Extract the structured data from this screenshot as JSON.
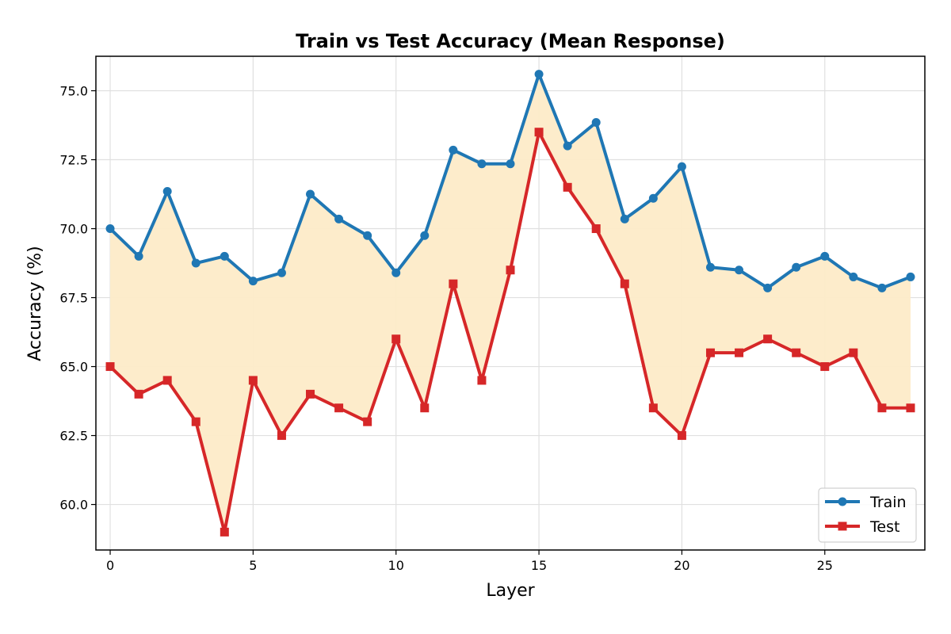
{
  "chart_data": {
    "type": "line",
    "title": "Train vs Test Accuracy (Mean Response)",
    "xlabel": "Layer",
    "ylabel": "Accuracy (%)",
    "x": [
      0,
      1,
      2,
      3,
      4,
      5,
      6,
      7,
      8,
      9,
      10,
      11,
      12,
      13,
      14,
      15,
      16,
      17,
      18,
      19,
      20,
      21,
      22,
      23,
      24,
      25,
      26,
      27,
      28
    ],
    "series": [
      {
        "name": "Train",
        "color": "#1f77b4",
        "marker": "circle",
        "values": [
          70.0,
          69.0,
          71.35,
          68.75,
          69.0,
          68.1,
          68.4,
          71.25,
          70.35,
          69.75,
          68.4,
          69.75,
          72.85,
          72.35,
          72.35,
          75.6,
          73.0,
          73.85,
          70.35,
          71.1,
          72.25,
          68.6,
          68.5,
          67.85,
          68.6,
          69.0,
          68.25,
          67.85,
          68.25
        ]
      },
      {
        "name": "Test",
        "color": "#d62728",
        "marker": "square",
        "values": [
          65.0,
          64.0,
          64.5,
          63.0,
          59.0,
          64.5,
          62.5,
          64.0,
          63.5,
          63.0,
          66.0,
          63.5,
          68.0,
          64.5,
          68.5,
          73.5,
          71.5,
          70.0,
          68.0,
          63.5,
          62.5,
          65.5,
          65.5,
          66.0,
          65.5,
          65.0,
          65.5,
          63.5,
          63.5
        ]
      }
    ],
    "fill_between": {
      "color": "#fdebc8",
      "description": "shaded gap between Train and Test"
    },
    "xticks": [
      0,
      5,
      10,
      15,
      20,
      25
    ],
    "yticks": [
      60.0,
      62.5,
      65.0,
      67.5,
      70.0,
      72.5,
      75.0
    ],
    "xlim": [
      -0.5,
      28.5
    ],
    "ylim": [
      58.35,
      76.25
    ],
    "grid": true,
    "legend_position": "lower right"
  }
}
